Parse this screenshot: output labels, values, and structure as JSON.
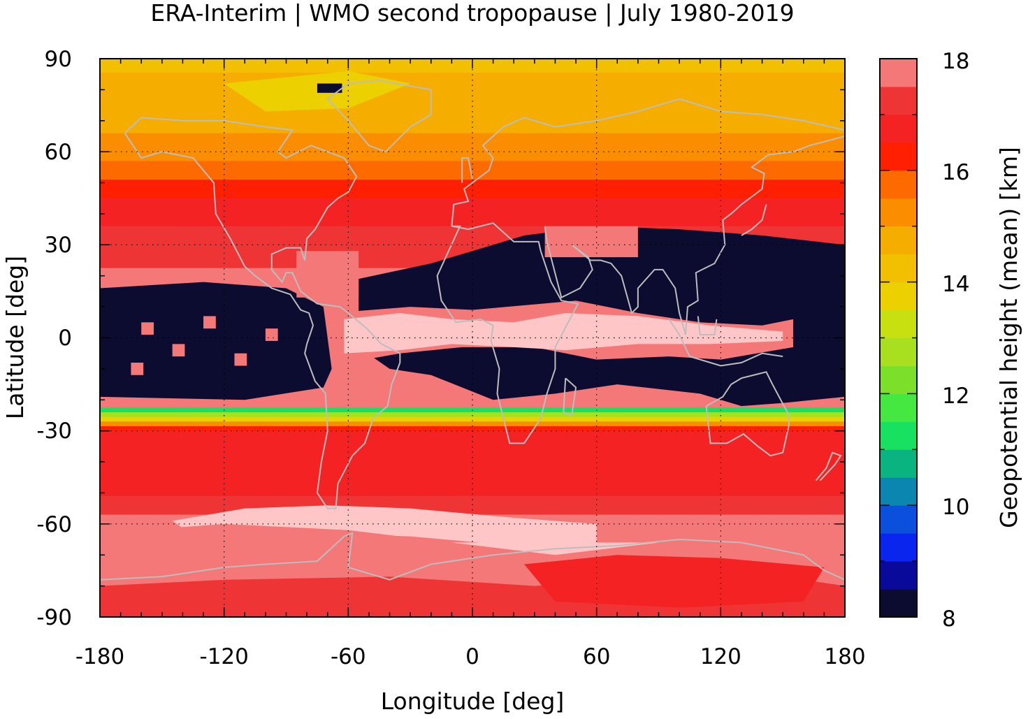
{
  "chart_data": {
    "type": "heatmap",
    "title": "ERA-Interim | WMO second tropopause | July 1980-2019",
    "xlabel": "Longitude [deg]",
    "ylabel": "Latitude [deg]",
    "xlim": [
      -180,
      180
    ],
    "ylim": [
      -90,
      90
    ],
    "x_ticks": [
      "-180",
      "-120",
      "-60",
      "0",
      "60",
      "120",
      "180"
    ],
    "y_ticks": [
      "90",
      "60",
      "30",
      "0",
      "-30",
      "-60",
      "-90"
    ],
    "grid": true,
    "colorbar": {
      "label": "Geopotential height (mean) [km]",
      "range": [
        8,
        18
      ],
      "ticks": [
        "18",
        "16",
        "14",
        "12",
        "10",
        "8"
      ],
      "levels": [
        8,
        8.5,
        9,
        9.5,
        10,
        10.5,
        11,
        11.5,
        12,
        12.5,
        13,
        13.5,
        14,
        14.5,
        15,
        15.5,
        16,
        16.5,
        17,
        17.5
      ],
      "colors": [
        "#0c0c30",
        "#0a0a9a",
        "#0a26ee",
        "#0a50dc",
        "#0a86b0",
        "#0ab480",
        "#18e060",
        "#44e840",
        "#7ce02a",
        "#a8e020",
        "#c8e010",
        "#ecd000",
        "#f2c000",
        "#f5ae00",
        "#fa8e00",
        "#fd6a00",
        "#fe2000",
        "#f42222",
        "#ee3434",
        "#f47878",
        "#fec6c6"
      ]
    },
    "zonal_field_description_km": {
      "lat_bands": [
        90,
        75,
        60,
        50,
        40,
        30,
        20,
        10,
        0,
        -10,
        -20,
        -30,
        -40,
        -50,
        -60,
        -70,
        -80,
        -90
      ],
      "values": [
        13.9,
        14.2,
        14.7,
        15.6,
        16.3,
        16.8,
        17.0,
        8.0,
        17.5,
        8.0,
        8.0,
        16.5,
        16.2,
        16.4,
        17.3,
        17.6,
        16.7,
        16.6
      ]
    },
    "coastline_color": "#bdbdbd"
  }
}
